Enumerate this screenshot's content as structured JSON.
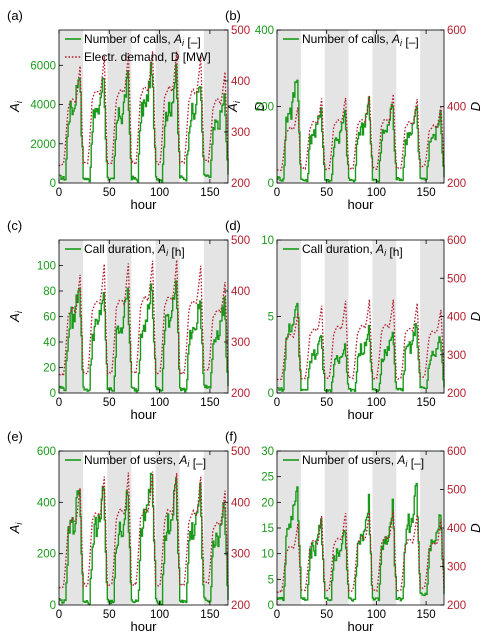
{
  "colors": {
    "series_a": "#1a9a1a",
    "series_d": "#b3202e",
    "night_band": "#e4e4e4",
    "axis": "#000000"
  },
  "chart_data": [
    {
      "panel_label": "(a)",
      "type": "line",
      "xlabel": "hour",
      "ylabel": "A_i",
      "y2label": "D",
      "xlim": [
        0,
        168
      ],
      "xticks": [
        0,
        50,
        100,
        150
      ],
      "ylim": [
        0,
        7800
      ],
      "yticks": [
        0,
        2000,
        4000,
        6000
      ],
      "y2lim": [
        200,
        500
      ],
      "y2ticks": [
        200,
        300,
        400,
        500
      ],
      "night_bands": [
        [
          0,
          24
        ],
        [
          48,
          72
        ],
        [
          96,
          120
        ],
        [
          144,
          168
        ]
      ],
      "legend": [
        "Number of calls, A_i [–]",
        "Electr. demand, D [MW]"
      ],
      "series": [
        {
          "name": "Number of calls, A_i [–]",
          "axis": "left",
          "style": "solid",
          "day_peaks": [
            5800,
            5400,
            5300,
            6000,
            5600,
            5300,
            4400
          ],
          "day_troughs": [
            200,
            150,
            150,
            150,
            150,
            200,
            300
          ]
        },
        {
          "name": "Electr. demand, D [MW]",
          "axis": "right",
          "style": "dotted",
          "day_peaks": [
            430,
            450,
            455,
            460,
            460,
            450,
            420
          ],
          "day_troughs": [
            225,
            228,
            228,
            228,
            228,
            228,
            235
          ]
        }
      ]
    },
    {
      "panel_label": "(b)",
      "type": "line",
      "xlabel": "hour",
      "ylabel": "A_i",
      "y2label": "D",
      "xlim": [
        0,
        168
      ],
      "xticks": [
        0,
        50,
        100,
        150
      ],
      "ylim": [
        0,
        400
      ],
      "yticks": [
        0,
        200,
        400
      ],
      "y2lim": [
        200,
        600
      ],
      "y2ticks": [
        200,
        400,
        600
      ],
      "night_bands": [
        [
          0,
          24
        ],
        [
          48,
          72
        ],
        [
          96,
          120
        ],
        [
          144,
          168
        ]
      ],
      "legend": [
        "Number of calls, A_i [–]"
      ],
      "series": [
        {
          "name": "Number of calls, A_i [–]",
          "axis": "left",
          "style": "solid",
          "day_peaks": [
            290,
            200,
            180,
            220,
            210,
            190,
            180
          ],
          "day_troughs": [
            8,
            5,
            5,
            5,
            5,
            8,
            10
          ]
        },
        {
          "axis": "right",
          "style": "dotted",
          "day_peaks": [
            400,
            420,
            425,
            430,
            430,
            420,
            400
          ],
          "day_troughs": [
            225,
            228,
            228,
            228,
            228,
            228,
            235
          ]
        }
      ]
    },
    {
      "panel_label": "(c)",
      "type": "line",
      "xlabel": "hour",
      "ylabel": "A_i",
      "y2label": "",
      "xlim": [
        0,
        168
      ],
      "xticks": [
        0,
        50,
        100,
        150
      ],
      "ylim": [
        0,
        120
      ],
      "yticks": [
        0,
        20,
        40,
        60,
        80,
        100
      ],
      "y2lim": [
        200,
        500
      ],
      "y2ticks": [
        200,
        300,
        400,
        500
      ],
      "night_bands": [
        [
          0,
          24
        ],
        [
          48,
          72
        ],
        [
          96,
          120
        ],
        [
          144,
          168
        ]
      ],
      "legend": [
        "Call duration, A_i [h]"
      ],
      "series": [
        {
          "name": "Call duration, A_i [h]",
          "axis": "left",
          "style": "solid",
          "day_peaks": [
            88,
            80,
            80,
            85,
            90,
            72,
            70
          ],
          "day_troughs": [
            3,
            2,
            2,
            2,
            2,
            2,
            4
          ]
        },
        {
          "axis": "right",
          "style": "dotted",
          "day_peaks": [
            430,
            450,
            455,
            460,
            460,
            450,
            420
          ],
          "day_troughs": [
            225,
            228,
            228,
            228,
            228,
            228,
            235
          ]
        }
      ]
    },
    {
      "panel_label": "(d)",
      "type": "line",
      "xlabel": "hour",
      "ylabel": "",
      "y2label": "D",
      "xlim": [
        0,
        168
      ],
      "xticks": [
        0,
        50,
        100,
        150
      ],
      "ylim": [
        0,
        10
      ],
      "yticks": [
        0,
        5,
        10
      ],
      "y2lim": [
        200,
        600
      ],
      "y2ticks": [
        200,
        300,
        400,
        500,
        600
      ],
      "night_bands": [
        [
          0,
          24
        ],
        [
          48,
          72
        ],
        [
          96,
          120
        ],
        [
          144,
          168
        ]
      ],
      "legend": [
        "Call duration, A_i [h]"
      ],
      "series": [
        {
          "name": "Call duration, A_i [h]",
          "axis": "left",
          "style": "solid",
          "day_peaks": [
            6.2,
            3.8,
            3.2,
            4.2,
            3.9,
            4.5,
            3.6
          ],
          "day_troughs": [
            0.2,
            0.15,
            0.15,
            0.15,
            0.15,
            0.2,
            0.3
          ]
        },
        {
          "axis": "right",
          "style": "dotted",
          "day_peaks": [
            410,
            430,
            440,
            445,
            445,
            435,
            420
          ],
          "day_troughs": [
            225,
            228,
            228,
            228,
            228,
            228,
            235
          ]
        }
      ]
    },
    {
      "panel_label": "(e)",
      "type": "line",
      "xlabel": "hour",
      "ylabel": "A_i",
      "y2label": "",
      "xlim": [
        0,
        168
      ],
      "xticks": [
        0,
        50,
        100,
        150
      ],
      "ylim": [
        0,
        600
      ],
      "yticks": [
        0,
        200,
        400,
        600
      ],
      "y2lim": [
        200,
        500
      ],
      "y2ticks": [
        200,
        300,
        400,
        500
      ],
      "night_bands": [
        [
          0,
          24
        ],
        [
          48,
          72
        ],
        [
          96,
          120
        ],
        [
          144,
          168
        ]
      ],
      "legend": [
        "Number of users, A_i [–]"
      ],
      "series": [
        {
          "name": "Number of users, A_i [–]",
          "axis": "left",
          "style": "solid",
          "day_peaks": [
            470,
            460,
            440,
            520,
            470,
            440,
            400
          ],
          "day_troughs": [
            10,
            8,
            8,
            8,
            8,
            10,
            15
          ]
        },
        {
          "axis": "right",
          "style": "dotted",
          "day_peaks": [
            430,
            450,
            455,
            460,
            460,
            450,
            420
          ],
          "day_troughs": [
            225,
            228,
            228,
            228,
            228,
            228,
            235
          ]
        }
      ]
    },
    {
      "panel_label": "(f)",
      "type": "line",
      "xlabel": "hour",
      "ylabel": "",
      "y2label": "D",
      "xlim": [
        0,
        168
      ],
      "xticks": [
        0,
        50,
        100,
        150
      ],
      "ylim": [
        0,
        30
      ],
      "yticks": [
        0,
        5,
        10,
        15,
        20,
        25,
        30
      ],
      "y2lim": [
        200,
        600
      ],
      "y2ticks": [
        200,
        300,
        400,
        500,
        600
      ],
      "night_bands": [
        [
          0,
          24
        ],
        [
          48,
          72
        ],
        [
          96,
          120
        ],
        [
          144,
          168
        ]
      ],
      "legend": [
        "Number of users, A_i [–]"
      ],
      "series": [
        {
          "name": "Number of users, A_i [–]",
          "axis": "left",
          "style": "solid",
          "day_peaks": [
            24,
            17,
            15,
            20,
            19,
            23,
            18
          ],
          "day_troughs": [
            1,
            1,
            1,
            1,
            1,
            1,
            2
          ]
        },
        {
          "axis": "right",
          "style": "dotted",
          "day_peaks": [
            410,
            430,
            440,
            445,
            445,
            435,
            420
          ],
          "day_troughs": [
            225,
            228,
            228,
            228,
            228,
            228,
            235
          ]
        }
      ]
    }
  ]
}
